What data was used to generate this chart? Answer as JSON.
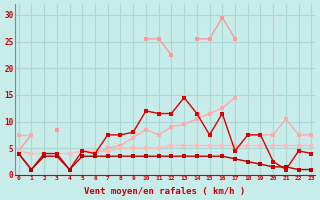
{
  "x": [
    0,
    1,
    2,
    3,
    4,
    5,
    6,
    7,
    8,
    9,
    10,
    11,
    12,
    13,
    14,
    15,
    16,
    17,
    18,
    19,
    20,
    21,
    22,
    23
  ],
  "bg": "#c8ecea",
  "grid_color": "#aad8d4",
  "xlabel": "Vent moyen/en rafales ( km/h )",
  "ylim": [
    0,
    32
  ],
  "xlim": [
    -0.3,
    23.3
  ],
  "yticks": [
    0,
    5,
    10,
    15,
    20,
    25,
    30
  ],
  "series": [
    {
      "color": "#ff9999",
      "lw": 1.0,
      "ms": 2.5,
      "values": [
        4.5,
        7.5,
        null,
        8.5,
        null,
        4.5,
        null,
        null,
        null,
        null,
        25.5,
        25.5,
        22.5,
        null,
        25.5,
        25.5,
        29.5,
        25.5,
        null,
        null,
        null,
        null,
        null,
        null
      ]
    },
    {
      "color": "#ffaaaa",
      "lw": 1.0,
      "ms": 2.5,
      "values": [
        4.5,
        null,
        null,
        null,
        null,
        null,
        4.0,
        5.0,
        5.5,
        7.0,
        8.5,
        7.5,
        9.0,
        9.5,
        10.5,
        11.5,
        12.5,
        14.5,
        null,
        null,
        null,
        null,
        null,
        null
      ]
    },
    {
      "color": "#ffaaaa",
      "lw": 1.0,
      "ms": 2.5,
      "values": [
        7.5,
        7.5,
        null,
        null,
        null,
        null,
        null,
        null,
        null,
        null,
        null,
        null,
        null,
        null,
        null,
        null,
        null,
        null,
        7.5,
        7.5,
        7.5,
        10.5,
        7.5,
        7.5
      ]
    },
    {
      "color": "#ffbbbb",
      "lw": 1.0,
      "ms": 2.5,
      "values": [
        4.5,
        4.0,
        4.0,
        4.0,
        4.0,
        4.5,
        4.5,
        4.5,
        5.0,
        5.0,
        5.0,
        5.0,
        5.5,
        5.5,
        5.5,
        5.5,
        5.5,
        5.5,
        5.5,
        5.5,
        5.5,
        5.5,
        5.5,
        5.5
      ]
    },
    {
      "color": "#dd0000",
      "lw": 1.0,
      "ms": 2.5,
      "values": [
        4.0,
        1.0,
        4.0,
        4.0,
        1.0,
        4.5,
        4.0,
        7.5,
        7.5,
        8.0,
        12.0,
        11.5,
        11.5,
        14.5,
        11.5,
        7.5,
        11.5,
        4.5,
        7.5,
        7.5,
        2.5,
        1.0,
        4.5,
        4.0
      ]
    },
    {
      "color": "#bb0000",
      "lw": 1.0,
      "ms": 2.5,
      "values": [
        4.0,
        1.0,
        3.5,
        3.5,
        1.0,
        3.5,
        3.5,
        3.5,
        3.5,
        3.5,
        3.5,
        3.5,
        3.5,
        3.5,
        3.5,
        3.5,
        3.5,
        3.0,
        2.5,
        2.0,
        1.5,
        1.5,
        1.0,
        1.0
      ]
    }
  ]
}
